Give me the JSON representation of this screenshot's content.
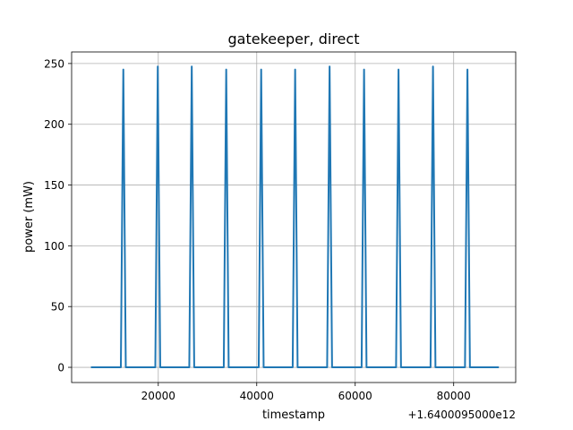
{
  "chart_data": {
    "type": "line",
    "title": "gatekeeper, direct",
    "xlabel": "timestamp",
    "ylabel": "power (mW)",
    "x_offset_label": "+1.6400095000e12",
    "grid": true,
    "xlim": [
      2400,
      92600
    ],
    "ylim": [
      -12.5,
      259.5
    ],
    "xticks": [
      20000,
      40000,
      60000,
      80000
    ],
    "xtick_labels": [
      "20000",
      "40000",
      "60000",
      "80000"
    ],
    "yticks": [
      0,
      50,
      100,
      150,
      200,
      250
    ],
    "ytick_labels": [
      "0",
      "50",
      "100",
      "150",
      "200",
      "250"
    ],
    "series": [
      {
        "color": "#1f77b4",
        "x": [
          6500,
          12400,
          12900,
          13400,
          19400,
          19900,
          20400,
          26300,
          26800,
          27300,
          33300,
          33800,
          34300,
          40400,
          40900,
          41400,
          47300,
          47800,
          48300,
          54300,
          54800,
          55300,
          61300,
          61800,
          62300,
          68300,
          68800,
          69300,
          75300,
          75800,
          76300,
          82300,
          82800,
          83300,
          89000
        ],
        "y": [
          0,
          0,
          245,
          0,
          0,
          247.5,
          0,
          0,
          247.5,
          0,
          0,
          245,
          0,
          0,
          245,
          0,
          0,
          245,
          0,
          0,
          247.5,
          0,
          0,
          245,
          0,
          0,
          245,
          0,
          0,
          247.5,
          0,
          0,
          245,
          0,
          0
        ]
      }
    ]
  }
}
